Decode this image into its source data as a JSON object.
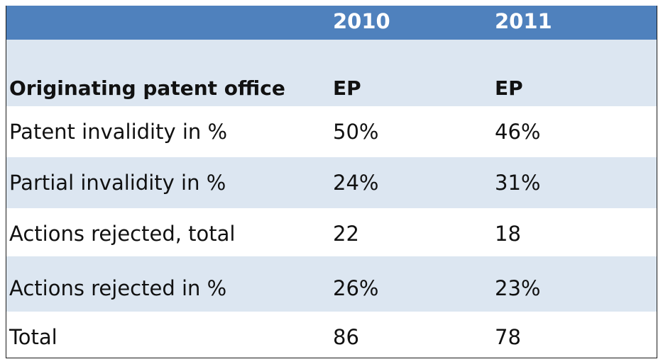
{
  "table": {
    "years": [
      "2010",
      "2011"
    ],
    "subheader": {
      "label": "Originating patent office",
      "values": [
        "EP",
        "EP"
      ]
    },
    "rows": [
      {
        "label": "Patent invalidity in %",
        "values": [
          "50%",
          "46%"
        ]
      },
      {
        "label": "Partial invalidity in %",
        "values": [
          "24%",
          "31%"
        ]
      },
      {
        "label": "Actions rejected, total",
        "values": [
          "22",
          "18"
        ]
      },
      {
        "label": "Actions rejected in %",
        "values": [
          "26%",
          "23%"
        ]
      },
      {
        "label": "Total",
        "values": [
          "86",
          "78"
        ]
      }
    ]
  },
  "colors": {
    "header_bg": "#4f81bd",
    "band_bg": "#dce6f1",
    "header_text": "#ffffff"
  }
}
